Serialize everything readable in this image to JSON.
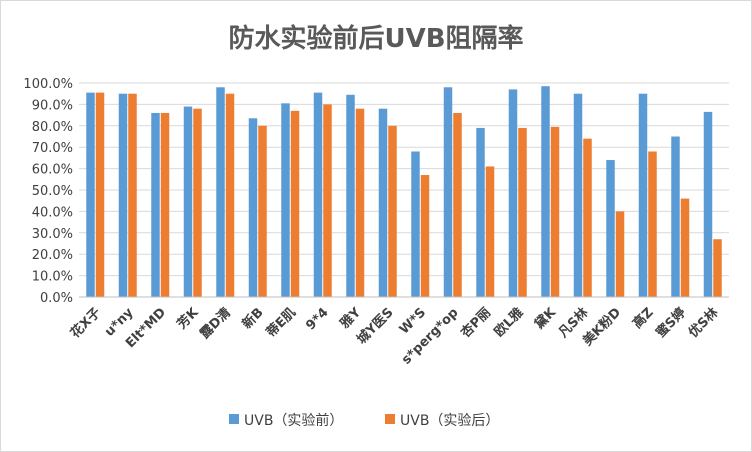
{
  "chart_data": {
    "type": "bar",
    "title": "防水实验前后UVB阻隔率",
    "xlabel": "",
    "ylabel": "",
    "ylim": [
      0,
      100
    ],
    "y_ticks": [
      "0.0%",
      "10.0%",
      "20.0%",
      "30.0%",
      "40.0%",
      "50.0%",
      "60.0%",
      "70.0%",
      "80.0%",
      "90.0%",
      "100.0%"
    ],
    "grid": true,
    "legend_position": "bottom",
    "categories": [
      "花X子",
      "u*ny",
      "Elt*MD",
      "芳K",
      "露D清",
      "新B",
      "蒂E肌",
      "9*4",
      "雅Y",
      "城Y医S",
      "W*S",
      "s*perg*op",
      "杏P丽",
      "欧L雅",
      "黛K",
      "凡S林",
      "美K粉D",
      "高Z",
      "蜜S婷",
      "优S林"
    ],
    "series": [
      {
        "name": "UVB（实验前）",
        "color": "#5B9BD5",
        "values": [
          95.5,
          95.0,
          86.0,
          89.0,
          98.0,
          83.5,
          90.5,
          95.5,
          94.5,
          88.0,
          68.0,
          98.0,
          79.0,
          97.0,
          98.5,
          95.0,
          64.0,
          95.0,
          75.0,
          86.5
        ]
      },
      {
        "name": "UVB（实验后）",
        "color": "#ED7D31",
        "values": [
          95.5,
          95.0,
          86.0,
          88.0,
          95.0,
          80.0,
          87.0,
          90.0,
          88.0,
          80.0,
          57.0,
          86.0,
          61.0,
          79.0,
          79.5,
          74.0,
          40.0,
          68.0,
          46.0,
          27.0
        ]
      }
    ]
  }
}
